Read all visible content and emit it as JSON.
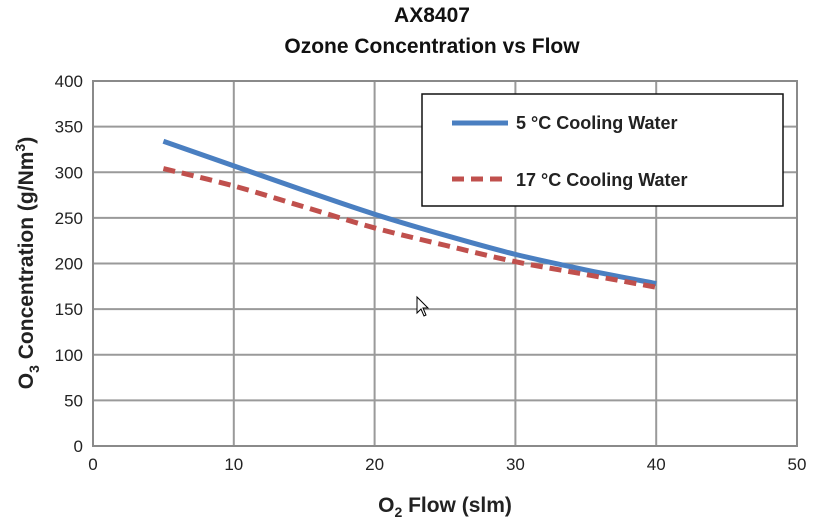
{
  "chart_data": {
    "type": "line",
    "title": "AX8407",
    "subtitle": "Ozone Concentration vs Flow",
    "xlabel": "O2 Flow (slm)",
    "ylabel": "O3 Concentration (g/Nm3)",
    "xlim": [
      0,
      50
    ],
    "ylim": [
      0,
      400
    ],
    "xticks": [
      0,
      10,
      20,
      30,
      40,
      50
    ],
    "yticks": [
      0,
      50,
      100,
      150,
      200,
      250,
      300,
      350,
      400
    ],
    "grid": true,
    "legend_position": "top-right",
    "x": [
      5,
      10,
      15,
      20,
      25,
      30,
      35,
      40
    ],
    "series": [
      {
        "name": "5 °C Cooling Water",
        "color": "#4a7fc1",
        "style": "solid",
        "values": [
          334,
          307,
          280,
          254,
          231,
          210,
          193,
          178
        ]
      },
      {
        "name": "17 °C Cooling Water",
        "color": "#c0504d",
        "style": "dashed",
        "values": [
          304,
          285,
          262,
          239,
          220,
          202,
          188,
          174
        ]
      }
    ]
  }
}
